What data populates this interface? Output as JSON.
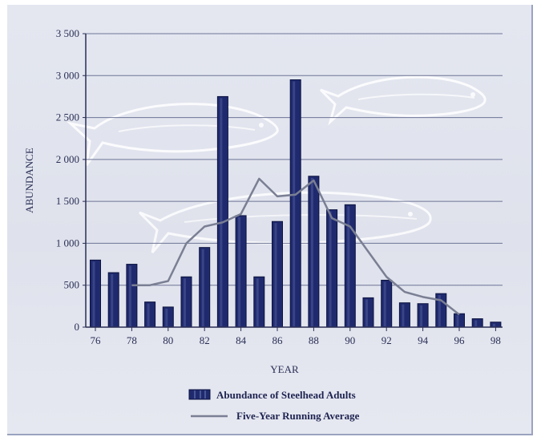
{
  "chart_data": {
    "type": "bar",
    "ylabel": "ABUNDANCE",
    "xlabel": "YEAR",
    "ylim": [
      0,
      3500
    ],
    "yticks": [
      0,
      500,
      1000,
      1500,
      2000,
      2500,
      3000,
      3500
    ],
    "ytick_labels": [
      "0",
      "500",
      "1 000",
      "1 500",
      "2 000",
      "2 500",
      "3 000",
      "3 500"
    ],
    "xticks": [
      76,
      78,
      80,
      82,
      84,
      86,
      88,
      90,
      92,
      94,
      96,
      98
    ],
    "xtick_labels": [
      "76",
      "78",
      "80",
      "82",
      "84",
      "86",
      "88",
      "90",
      "92",
      "94",
      "96",
      "98"
    ],
    "grid": true,
    "legend_position": "bottom-center",
    "categories": [
      76,
      77,
      78,
      79,
      80,
      81,
      82,
      83,
      84,
      85,
      86,
      87,
      88,
      89,
      90,
      91,
      92,
      93,
      94,
      95,
      96,
      97,
      98
    ],
    "series": [
      {
        "name": "Abundance of Steelhead Adults",
        "kind": "bar",
        "color": "#1f2a6e",
        "values": [
          800,
          650,
          750,
          300,
          240,
          600,
          950,
          2750,
          1330,
          600,
          1260,
          2950,
          1800,
          1400,
          1460,
          350,
          560,
          290,
          280,
          400,
          160,
          100,
          60
        ]
      },
      {
        "name": "Five-Year Running Average",
        "kind": "line",
        "color": "#7a7f93",
        "x": [
          78,
          79,
          80,
          81,
          82,
          83,
          84,
          85,
          86,
          87,
          88,
          89,
          90,
          91,
          92,
          93,
          94,
          95,
          96
        ],
        "values": [
          500,
          500,
          550,
          1000,
          1200,
          1250,
          1350,
          1770,
          1560,
          1580,
          1750,
          1300,
          1200,
          900,
          600,
          420,
          360,
          320,
          150
        ]
      }
    ]
  }
}
